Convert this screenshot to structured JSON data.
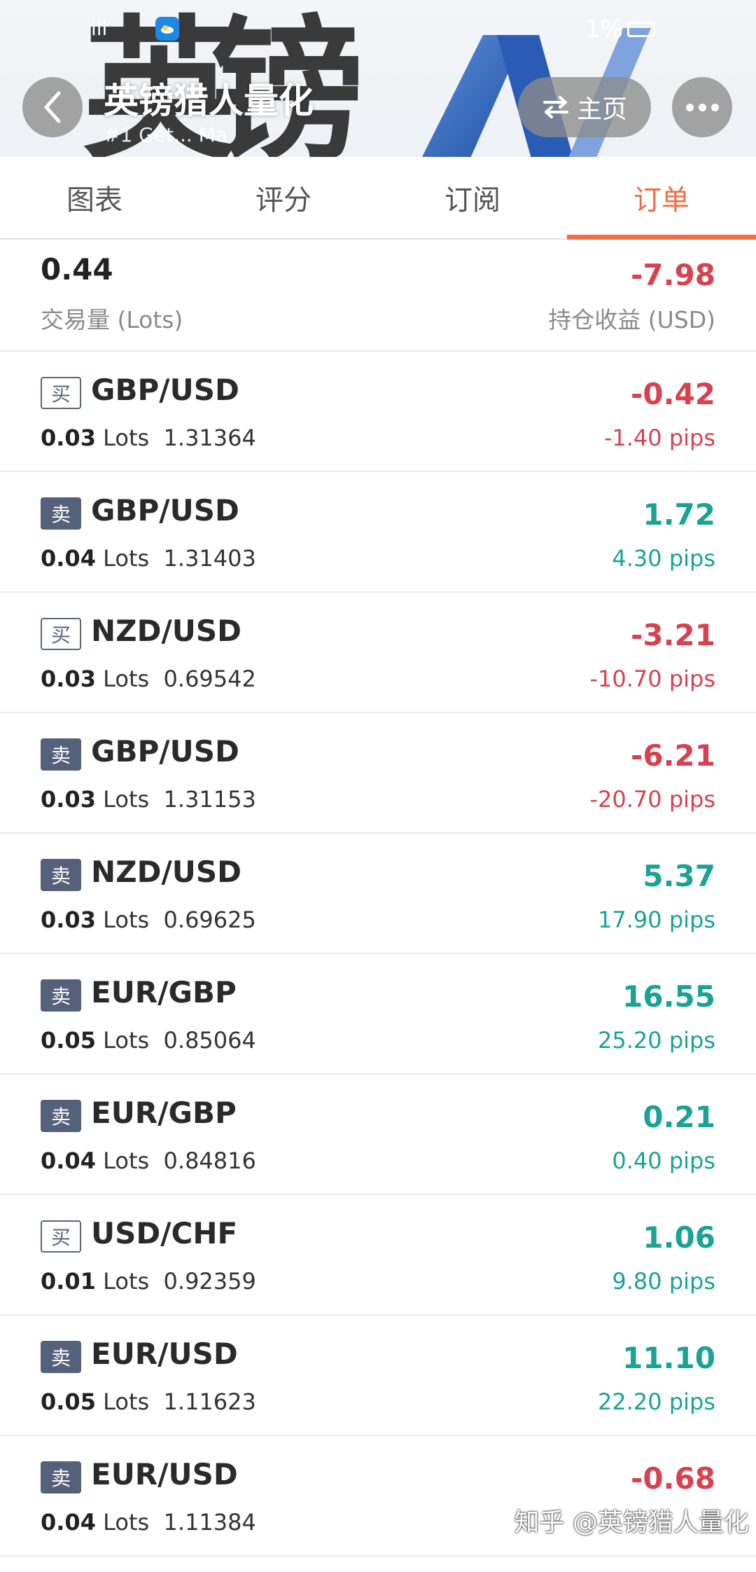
{
  "status_bar": {
    "signal": "ill",
    "battery_text": "1%"
  },
  "header": {
    "title": "英镑猎人量化",
    "subtitle": "#1 Get... Ma",
    "home_label": "主页",
    "background_chars": [
      "英",
      "镑"
    ]
  },
  "tabs": [
    {
      "label": "图表",
      "active": false
    },
    {
      "label": "评分",
      "active": false
    },
    {
      "label": "订阅",
      "active": false
    },
    {
      "label": "订单",
      "active": true
    }
  ],
  "summary": {
    "volume": "0.44",
    "volume_label": "交易量 (Lots)",
    "pl": "-7.98",
    "pl_label": "持仓收益 (USD)",
    "pl_sign": "neg"
  },
  "orders": [
    {
      "side": "买",
      "side_type": "buy",
      "symbol": "GBP/USD",
      "lots": "0.03",
      "lots_unit": "Lots",
      "price": "1.31364",
      "pl": "-0.42",
      "pips": "-1.40 pips",
      "sign": "neg"
    },
    {
      "side": "卖",
      "side_type": "sell",
      "symbol": "GBP/USD",
      "lots": "0.04",
      "lots_unit": "Lots",
      "price": "1.31403",
      "pl": "1.72",
      "pips": "4.30 pips",
      "sign": "pos"
    },
    {
      "side": "买",
      "side_type": "buy",
      "symbol": "NZD/USD",
      "lots": "0.03",
      "lots_unit": "Lots",
      "price": "0.69542",
      "pl": "-3.21",
      "pips": "-10.70 pips",
      "sign": "neg"
    },
    {
      "side": "卖",
      "side_type": "sell",
      "symbol": "GBP/USD",
      "lots": "0.03",
      "lots_unit": "Lots",
      "price": "1.31153",
      "pl": "-6.21",
      "pips": "-20.70 pips",
      "sign": "neg"
    },
    {
      "side": "卖",
      "side_type": "sell",
      "symbol": "NZD/USD",
      "lots": "0.03",
      "lots_unit": "Lots",
      "price": "0.69625",
      "pl": "5.37",
      "pips": "17.90 pips",
      "sign": "pos"
    },
    {
      "side": "卖",
      "side_type": "sell",
      "symbol": "EUR/GBP",
      "lots": "0.05",
      "lots_unit": "Lots",
      "price": "0.85064",
      "pl": "16.55",
      "pips": "25.20 pips",
      "sign": "pos"
    },
    {
      "side": "卖",
      "side_type": "sell",
      "symbol": "EUR/GBP",
      "lots": "0.04",
      "lots_unit": "Lots",
      "price": "0.84816",
      "pl": "0.21",
      "pips": "0.40 pips",
      "sign": "pos"
    },
    {
      "side": "买",
      "side_type": "buy",
      "symbol": "USD/CHF",
      "lots": "0.01",
      "lots_unit": "Lots",
      "price": "0.92359",
      "pl": "1.06",
      "pips": "9.80 pips",
      "sign": "pos"
    },
    {
      "side": "卖",
      "side_type": "sell",
      "symbol": "EUR/USD",
      "lots": "0.05",
      "lots_unit": "Lots",
      "price": "1.11623",
      "pl": "11.10",
      "pips": "22.20 pips",
      "sign": "pos"
    },
    {
      "side": "卖",
      "side_type": "sell",
      "symbol": "EUR/USD",
      "lots": "0.04",
      "lots_unit": "Lots",
      "price": "1.11384",
      "pl": "-0.68",
      "pips": "",
      "sign": "neg"
    }
  ],
  "watermark": "知乎 @英镑猎人量化",
  "colors": {
    "accent": "#ef6e45",
    "negative": "#d8414f",
    "positive": "#1aa394",
    "sell_badge": "#55607a"
  }
}
